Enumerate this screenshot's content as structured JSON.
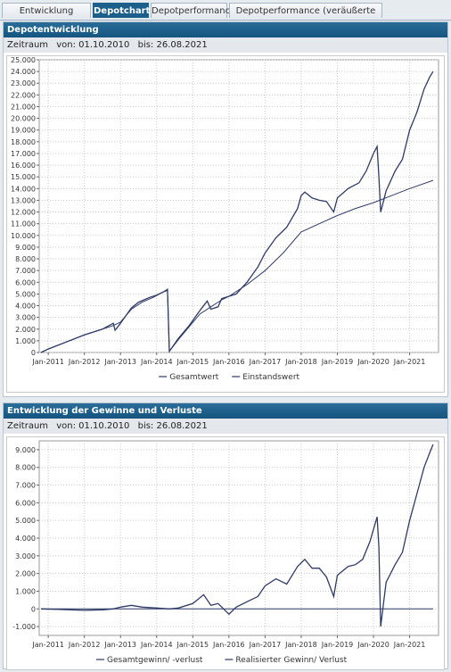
{
  "tabs": [
    {
      "label": "Entwicklung Depotwerte",
      "active": false
    },
    {
      "label": "Depotcharts",
      "active": true
    },
    {
      "label": "Depotperformance",
      "active": false
    },
    {
      "label": "Depotperformance (veräußerte Positionen)",
      "active": false
    }
  ],
  "panels": [
    {
      "title": "Depotentwicklung",
      "zeitraum_label": "Zeitraum",
      "von": "von: 01.10.2010",
      "bis": "bis: 26.08.2021"
    },
    {
      "title": "Entwicklung der Gewinne und Verluste",
      "zeitraum_label": "Zeitraum",
      "von": "von: 01.10.2010",
      "bis": "bis: 26.08.2021"
    }
  ],
  "colors": {
    "header": "#1b5f8a",
    "series": "#2f3a66",
    "grid": "#c8c8c8"
  },
  "chart_data": [
    {
      "type": "line",
      "xlim": [
        2010.75,
        2021.8
      ],
      "ylim": [
        0,
        25000
      ],
      "grid": true,
      "legend_position": "bottom",
      "x_ticks": [
        2011,
        2012,
        2013,
        2014,
        2015,
        2016,
        2017,
        2018,
        2019,
        2020,
        2021
      ],
      "x_tick_labels": [
        "Jan-2011",
        "Jan-2012",
        "Jan-2013",
        "Jan-2014",
        "Jan-2015",
        "Jan-2016",
        "Jan-2017",
        "Jan-2018",
        "Jan-2019",
        "Jan-2020",
        "Jan-2021"
      ],
      "y_ticks": [
        0,
        1000,
        2000,
        3000,
        4000,
        5000,
        6000,
        7000,
        8000,
        9000,
        10000,
        11000,
        12000,
        13000,
        14000,
        15000,
        16000,
        17000,
        18000,
        19000,
        20000,
        21000,
        22000,
        23000,
        24000,
        25000
      ],
      "y_tick_labels": [
        "0",
        "1.000",
        "2.000",
        "3.000",
        "4.000",
        "5.000",
        "6.000",
        "7.000",
        "8.000",
        "9.000",
        "10.000",
        "11.000",
        "12.000",
        "13.000",
        "14.000",
        "15.000",
        "16.000",
        "17.000",
        "18.000",
        "19.000",
        "20.000",
        "21.000",
        "22.000",
        "23.000",
        "24.000",
        "25.000"
      ],
      "series": [
        {
          "name": "Gesamtwert",
          "points": [
            [
              2010.8,
              0
            ],
            [
              2011.0,
              300
            ],
            [
              2011.5,
              900
            ],
            [
              2012.0,
              1500
            ],
            [
              2012.5,
              2000
            ],
            [
              2012.8,
              2500
            ],
            [
              2012.85,
              1900
            ],
            [
              2013.0,
              2500
            ],
            [
              2013.3,
              3800
            ],
            [
              2013.5,
              4300
            ],
            [
              2013.8,
              4700
            ],
            [
              2014.0,
              4900
            ],
            [
              2014.2,
              5200
            ],
            [
              2014.3,
              5400
            ],
            [
              2014.35,
              100
            ],
            [
              2014.6,
              1200
            ],
            [
              2014.9,
              2300
            ],
            [
              2015.2,
              3600
            ],
            [
              2015.4,
              4400
            ],
            [
              2015.5,
              3700
            ],
            [
              2015.7,
              3900
            ],
            [
              2015.8,
              4600
            ],
            [
              2016.0,
              4800
            ],
            [
              2016.2,
              5000
            ],
            [
              2016.5,
              6000
            ],
            [
              2016.8,
              7300
            ],
            [
              2017.0,
              8500
            ],
            [
              2017.3,
              9800
            ],
            [
              2017.6,
              10700
            ],
            [
              2017.9,
              12300
            ],
            [
              2018.0,
              13400
            ],
            [
              2018.1,
              13700
            ],
            [
              2018.3,
              13200
            ],
            [
              2018.5,
              13000
            ],
            [
              2018.7,
              12900
            ],
            [
              2018.9,
              12000
            ],
            [
              2019.0,
              13200
            ],
            [
              2019.3,
              14000
            ],
            [
              2019.6,
              14500
            ],
            [
              2019.8,
              15500
            ],
            [
              2020.0,
              17000
            ],
            [
              2020.1,
              17600
            ],
            [
              2020.15,
              15000
            ],
            [
              2020.2,
              12000
            ],
            [
              2020.35,
              13800
            ],
            [
              2020.6,
              15500
            ],
            [
              2020.8,
              16500
            ],
            [
              2021.0,
              19000
            ],
            [
              2021.2,
              20500
            ],
            [
              2021.4,
              22500
            ],
            [
              2021.55,
              23500
            ],
            [
              2021.65,
              24000
            ]
          ]
        },
        {
          "name": "Einstandswert",
          "points": [
            [
              2010.8,
              0
            ],
            [
              2011.0,
              300
            ],
            [
              2011.5,
              900
            ],
            [
              2012.0,
              1500
            ],
            [
              2012.5,
              2000
            ],
            [
              2012.8,
              2300
            ],
            [
              2013.0,
              2600
            ],
            [
              2013.3,
              3700
            ],
            [
              2013.6,
              4300
            ],
            [
              2013.9,
              4700
            ],
            [
              2014.2,
              5200
            ],
            [
              2014.3,
              5300
            ],
            [
              2014.35,
              100
            ],
            [
              2014.6,
              1100
            ],
            [
              2014.9,
              2200
            ],
            [
              2015.2,
              3300
            ],
            [
              2015.5,
              3900
            ],
            [
              2015.8,
              4500
            ],
            [
              2016.0,
              4800
            ],
            [
              2016.5,
              5800
            ],
            [
              2017.0,
              7000
            ],
            [
              2017.5,
              8500
            ],
            [
              2018.0,
              10300
            ],
            [
              2018.5,
              11000
            ],
            [
              2019.0,
              11700
            ],
            [
              2019.5,
              12300
            ],
            [
              2020.0,
              12800
            ],
            [
              2020.5,
              13400
            ],
            [
              2021.0,
              14000
            ],
            [
              2021.65,
              14700
            ]
          ]
        }
      ]
    },
    {
      "type": "line",
      "xlim": [
        2010.75,
        2021.8
      ],
      "ylim": [
        -1500,
        9500
      ],
      "grid": true,
      "legend_position": "bottom",
      "x_ticks": [
        2011,
        2012,
        2013,
        2014,
        2015,
        2016,
        2017,
        2018,
        2019,
        2020,
        2021
      ],
      "x_tick_labels": [
        "Jan-2011",
        "Jan-2012",
        "Jan-2013",
        "Jan-2014",
        "Jan-2015",
        "Jan-2016",
        "Jan-2017",
        "Jan-2018",
        "Jan-2019",
        "Jan-2020",
        "Jan-2021"
      ],
      "y_ticks": [
        -1000,
        0,
        1000,
        2000,
        3000,
        4000,
        5000,
        6000,
        7000,
        8000,
        9000
      ],
      "y_tick_labels": [
        "-1.000",
        "0",
        "1.000",
        "2.000",
        "3.000",
        "4.000",
        "5.000",
        "6.000",
        "7.000",
        "8.000",
        "9.000"
      ],
      "series": [
        {
          "name": "Gesamtgewinn/ -verlust",
          "points": [
            [
              2010.8,
              0
            ],
            [
              2011.3,
              -30
            ],
            [
              2012.0,
              -80
            ],
            [
              2012.5,
              -50
            ],
            [
              2012.8,
              0
            ],
            [
              2013.0,
              100
            ],
            [
              2013.3,
              200
            ],
            [
              2013.6,
              100
            ],
            [
              2014.0,
              50
            ],
            [
              2014.35,
              0
            ],
            [
              2014.6,
              50
            ],
            [
              2015.0,
              300
            ],
            [
              2015.3,
              800
            ],
            [
              2015.5,
              200
            ],
            [
              2015.7,
              300
            ],
            [
              2016.0,
              -300
            ],
            [
              2016.2,
              100
            ],
            [
              2016.5,
              400
            ],
            [
              2016.8,
              700
            ],
            [
              2017.0,
              1300
            ],
            [
              2017.3,
              1700
            ],
            [
              2017.6,
              1400
            ],
            [
              2017.9,
              2400
            ],
            [
              2018.1,
              2800
            ],
            [
              2018.3,
              2300
            ],
            [
              2018.5,
              2300
            ],
            [
              2018.7,
              1800
            ],
            [
              2018.9,
              700
            ],
            [
              2019.0,
              1900
            ],
            [
              2019.3,
              2400
            ],
            [
              2019.5,
              2500
            ],
            [
              2019.7,
              2800
            ],
            [
              2019.9,
              3800
            ],
            [
              2020.1,
              5200
            ],
            [
              2020.15,
              3500
            ],
            [
              2020.2,
              -1000
            ],
            [
              2020.35,
              1500
            ],
            [
              2020.6,
              2500
            ],
            [
              2020.8,
              3200
            ],
            [
              2021.0,
              5000
            ],
            [
              2021.2,
              6500
            ],
            [
              2021.4,
              8000
            ],
            [
              2021.55,
              8800
            ],
            [
              2021.65,
              9300
            ]
          ]
        },
        {
          "name": "Realisierter Gewinn/ Verlust",
          "points": [
            [
              2010.8,
              0
            ],
            [
              2021.65,
              0
            ]
          ]
        }
      ]
    }
  ]
}
